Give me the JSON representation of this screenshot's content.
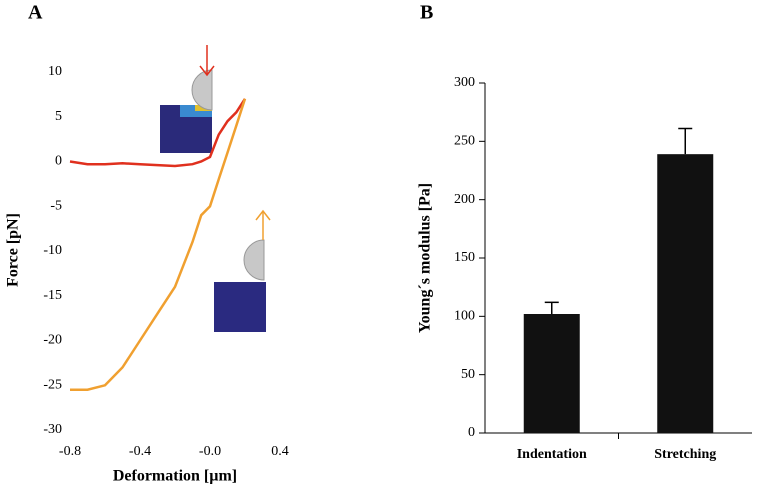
{
  "chart_data": [
    {
      "type": "line",
      "panel_label": "A",
      "x_label": "Deformation [µm]",
      "y_label": "Force [pN]",
      "xlim": [
        -0.8,
        0.4
      ],
      "ylim": [
        -30,
        10
      ],
      "xticks": [
        -0.8,
        -0.4,
        {
          "value": 0,
          "label": "-0.0"
        },
        0.4
      ],
      "yticks": [
        10,
        5,
        0,
        -5,
        -10,
        -15,
        -20,
        -25,
        -30
      ],
      "series": [
        {
          "color": "#e0301e",
          "x": [
            -0.8,
            -0.7,
            -0.6,
            -0.5,
            -0.4,
            -0.3,
            -0.2,
            -0.1,
            -0.05,
            0,
            0.05,
            0.1,
            0.15,
            0.2
          ],
          "values": [
            0,
            -0.3,
            -0.3,
            -0.2,
            -0.3,
            -0.4,
            -0.5,
            -0.3,
            0,
            0.5,
            3,
            4.5,
            5.5,
            7
          ]
        },
        {
          "color": "#f0a030",
          "x": [
            -0.8,
            -0.7,
            -0.6,
            -0.5,
            -0.4,
            -0.3,
            -0.2,
            -0.1,
            -0.05,
            0,
            0.05,
            0.1,
            0.15,
            0.2
          ],
          "values": [
            -25.5,
            -25.5,
            -25,
            -23,
            -20,
            -17,
            -14,
            -9,
            -6,
            -5,
            -2,
            1,
            4,
            7
          ]
        }
      ]
    },
    {
      "type": "bar",
      "panel_label": "B",
      "y_label": "Young´s modulus [Pa]",
      "categories": [
        "Indentation",
        "Stretching"
      ],
      "values": [
        102,
        239
      ],
      "errors": [
        10,
        22
      ],
      "color": "#111111",
      "ylim": [
        0,
        300
      ],
      "yticks": [
        0,
        50,
        100,
        150,
        200,
        250,
        300
      ]
    }
  ]
}
